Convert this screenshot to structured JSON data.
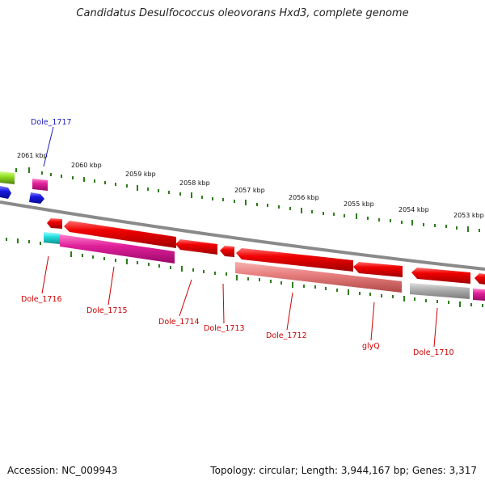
{
  "title": "Candidatus Desulfococcus oleovorans Hxd3, complete genome",
  "footer": {
    "accession": "Accession: NC_009943",
    "topology": "Topology: circular; Length: 3,944,167 bp; Genes: 3,317"
  },
  "kbp_labels": [
    "2061 kbp",
    "2060 kbp",
    "2059 kbp",
    "2058 kbp",
    "2057 kbp",
    "2056 kbp",
    "2055 kbp",
    "2054 kbp",
    "2053 kbp"
  ],
  "gene_labels": {
    "dole_1717": "Dole_1717",
    "dole_1716": "Dole_1716",
    "dole_1715": "Dole_1715",
    "dole_1714": "Dole_1714",
    "dole_1713": "Dole_1713",
    "dole_1712": "Dole_1712",
    "glyq": "glyQ",
    "dole_1710": "Dole_1710"
  },
  "colors": {
    "backbone": "#8a8a8a",
    "tick": "#2e7d1a",
    "red_gene": "#e80000",
    "pink_gene": "#e0209a",
    "salmon_gene": "#e88888",
    "gray_gene": "#b0b0b0",
    "cyan_gene": "#22dddd",
    "lime_gene": "#90e020",
    "blue_gene": "#1818e0",
    "label_blue": "#2020c0",
    "label_red": "#cc0000"
  }
}
